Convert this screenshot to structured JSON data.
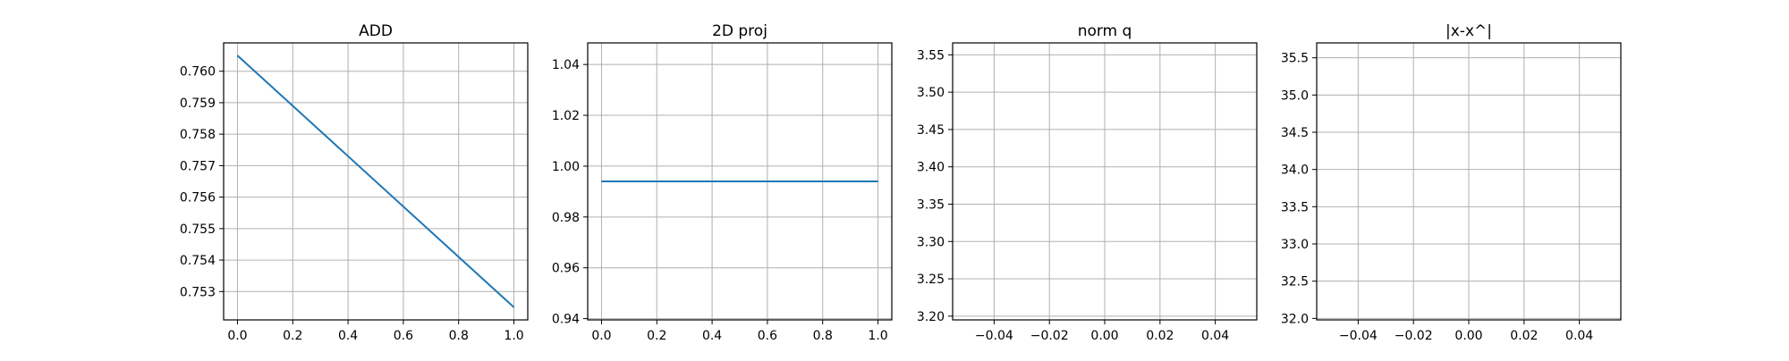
{
  "chart_data": [
    {
      "type": "line",
      "title": "ADD",
      "xlabel": "",
      "ylabel": "",
      "xlim": [
        -0.05,
        1.05
      ],
      "ylim": [
        0.7521,
        0.7609
      ],
      "xticks": [
        0.0,
        0.2,
        0.4,
        0.6,
        0.8,
        1.0
      ],
      "xtick_labels": [
        "0.0",
        "0.2",
        "0.4",
        "0.6",
        "0.8",
        "1.0"
      ],
      "yticks": [
        0.753,
        0.754,
        0.755,
        0.756,
        0.757,
        0.758,
        0.759,
        0.76
      ],
      "ytick_labels": [
        "0.753",
        "0.754",
        "0.755",
        "0.756",
        "0.757",
        "0.758",
        "0.759",
        "0.760"
      ],
      "grid": true,
      "series": [
        {
          "color": "#1f77b4",
          "x": [
            0.0,
            1.0
          ],
          "y": [
            0.7605,
            0.7525
          ]
        }
      ]
    },
    {
      "type": "line",
      "title": "2D proj",
      "xlabel": "",
      "ylabel": "",
      "xlim": [
        -0.05,
        1.05
      ],
      "ylim": [
        0.9395,
        1.0485
      ],
      "xticks": [
        0.0,
        0.2,
        0.4,
        0.6,
        0.8,
        1.0
      ],
      "xtick_labels": [
        "0.0",
        "0.2",
        "0.4",
        "0.6",
        "0.8",
        "1.0"
      ],
      "yticks": [
        0.94,
        0.96,
        0.98,
        1.0,
        1.02,
        1.04
      ],
      "ytick_labels": [
        "0.94",
        "0.96",
        "0.98",
        "1.00",
        "1.02",
        "1.04"
      ],
      "grid": true,
      "series": [
        {
          "color": "#1f77b4",
          "x": [
            0.0,
            1.0
          ],
          "y": [
            0.994,
            0.994
          ]
        }
      ]
    },
    {
      "type": "line",
      "title": "norm q",
      "xlabel": "",
      "ylabel": "",
      "xlim": [
        -0.055,
        0.055
      ],
      "ylim": [
        3.195,
        3.566
      ],
      "xticks": [
        -0.04,
        -0.02,
        0.0,
        0.02,
        0.04
      ],
      "xtick_labels": [
        "−0.04",
        "−0.02",
        "0.00",
        "0.02",
        "0.04"
      ],
      "yticks": [
        3.2,
        3.25,
        3.3,
        3.35,
        3.4,
        3.45,
        3.5,
        3.55
      ],
      "ytick_labels": [
        "3.20",
        "3.25",
        "3.30",
        "3.35",
        "3.40",
        "3.45",
        "3.50",
        "3.55"
      ],
      "grid": true,
      "series": []
    },
    {
      "type": "line",
      "title": "|x-x^|",
      "xlabel": "",
      "ylabel": "",
      "xlim": [
        -0.055,
        0.055
      ],
      "ylim": [
        31.98,
        35.7
      ],
      "xticks": [
        -0.04,
        -0.02,
        0.0,
        0.02,
        0.04
      ],
      "xtick_labels": [
        "−0.04",
        "−0.02",
        "0.00",
        "0.02",
        "0.04"
      ],
      "yticks": [
        32.0,
        32.5,
        33.0,
        33.5,
        34.0,
        34.5,
        35.0,
        35.5
      ],
      "ytick_labels": [
        "32.0",
        "32.5",
        "33.0",
        "33.5",
        "34.0",
        "34.5",
        "35.0",
        "35.5"
      ],
      "grid": true,
      "series": []
    }
  ]
}
